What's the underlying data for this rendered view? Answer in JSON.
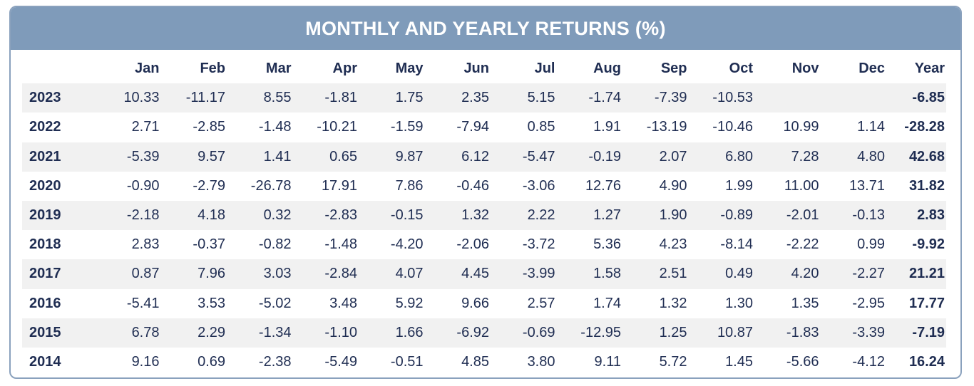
{
  "title": "MONTHLY AND YEARLY RETURNS (%)",
  "colors": {
    "header_bg": "#7f9bba",
    "header_text": "#ffffff",
    "text": "#1f2d52",
    "stripe": "#f1f1f1",
    "border": "#8aa1bd"
  },
  "chart_data": {
    "type": "table",
    "title": "MONTHLY AND YEARLY RETURNS (%)",
    "columns": [
      "Jan",
      "Feb",
      "Mar",
      "Apr",
      "May",
      "Jun",
      "Jul",
      "Aug",
      "Sep",
      "Oct",
      "Nov",
      "Dec",
      "Year"
    ],
    "rows": [
      {
        "year": "2023",
        "values": [
          "10.33",
          "-11.17",
          "8.55",
          "-1.81",
          "1.75",
          "2.35",
          "5.15",
          "-1.74",
          "-7.39",
          "-10.53",
          "",
          ""
        ],
        "total": "-6.85"
      },
      {
        "year": "2022",
        "values": [
          "2.71",
          "-2.85",
          "-1.48",
          "-10.21",
          "-1.59",
          "-7.94",
          "0.85",
          "1.91",
          "-13.19",
          "-10.46",
          "10.99",
          "1.14"
        ],
        "total": "-28.28"
      },
      {
        "year": "2021",
        "values": [
          "-5.39",
          "9.57",
          "1.41",
          "0.65",
          "9.87",
          "6.12",
          "-5.47",
          "-0.19",
          "2.07",
          "6.80",
          "7.28",
          "4.80"
        ],
        "total": "42.68"
      },
      {
        "year": "2020",
        "values": [
          "-0.90",
          "-2.79",
          "-26.78",
          "17.91",
          "7.86",
          "-0.46",
          "-3.06",
          "12.76",
          "4.90",
          "1.99",
          "11.00",
          "13.71"
        ],
        "total": "31.82"
      },
      {
        "year": "2019",
        "values": [
          "-2.18",
          "4.18",
          "0.32",
          "-2.83",
          "-0.15",
          "1.32",
          "2.22",
          "1.27",
          "1.90",
          "-0.89",
          "-2.01",
          "-0.13"
        ],
        "total": "2.83"
      },
      {
        "year": "2018",
        "values": [
          "2.83",
          "-0.37",
          "-0.82",
          "-1.48",
          "-4.20",
          "-2.06",
          "-3.72",
          "5.36",
          "4.23",
          "-8.14",
          "-2.22",
          "0.99"
        ],
        "total": "-9.92"
      },
      {
        "year": "2017",
        "values": [
          "0.87",
          "7.96",
          "3.03",
          "-2.84",
          "4.07",
          "4.45",
          "-3.99",
          "1.58",
          "2.51",
          "0.49",
          "4.20",
          "-2.27"
        ],
        "total": "21.21"
      },
      {
        "year": "2016",
        "values": [
          "-5.41",
          "3.53",
          "-5.02",
          "3.48",
          "5.92",
          "9.66",
          "2.57",
          "1.74",
          "1.32",
          "1.30",
          "1.35",
          "-2.95"
        ],
        "total": "17.77"
      },
      {
        "year": "2015",
        "values": [
          "6.78",
          "2.29",
          "-1.34",
          "-1.10",
          "1.66",
          "-6.92",
          "-0.69",
          "-12.95",
          "1.25",
          "10.87",
          "-1.83",
          "-3.39"
        ],
        "total": "-7.19"
      },
      {
        "year": "2014",
        "values": [
          "9.16",
          "0.69",
          "-2.38",
          "-5.49",
          "-0.51",
          "4.85",
          "3.80",
          "9.11",
          "5.72",
          "1.45",
          "-5.66",
          "-4.12"
        ],
        "total": "16.24"
      }
    ]
  }
}
